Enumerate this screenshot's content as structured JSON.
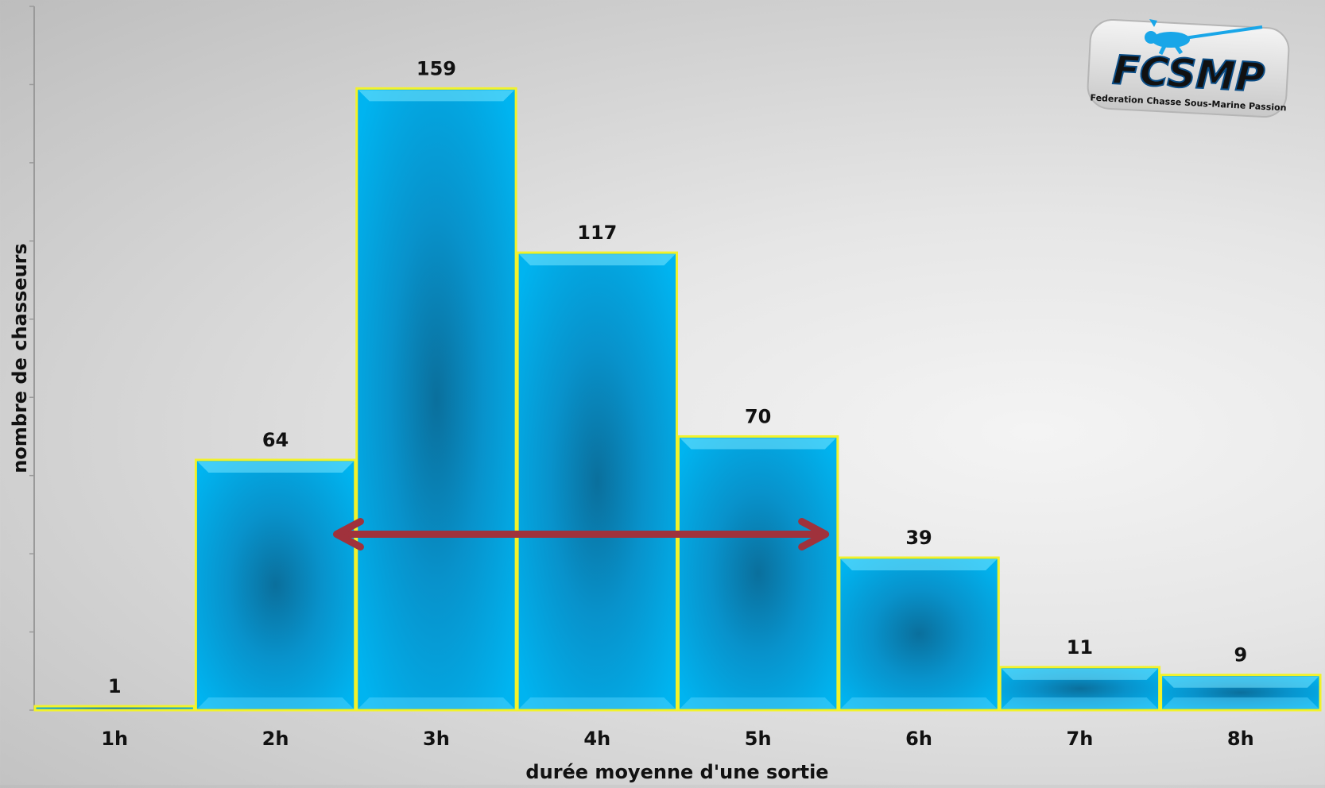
{
  "chart_data": {
    "type": "bar",
    "categories": [
      "1h",
      "2h",
      "3h",
      "4h",
      "5h",
      "6h",
      "7h",
      "8h"
    ],
    "values": [
      1,
      64,
      159,
      117,
      70,
      39,
      11,
      9
    ],
    "data_labels": [
      "1",
      "64",
      "159",
      "117",
      "70",
      "39",
      "11",
      "9"
    ],
    "title": "",
    "xlabel": "durée moyenne d'une sortie",
    "ylabel": "nombre de chasseurs",
    "ylim": [
      0,
      180
    ],
    "y_tick_labels_shown": false,
    "grid": false,
    "legend": "none",
    "annotation": {
      "type": "double-arrow",
      "from_category": "2h",
      "to_category": "5h",
      "at_value": 45,
      "color": "#a0323c"
    },
    "colors": {
      "bar_fill": "#00a9e8",
      "bar_center": "#0a6f9c",
      "bar_border": "#f2f22a"
    }
  },
  "logo": {
    "text": "FCSMP",
    "tagline": "Federation Chasse Sous-Marine Passion",
    "icon": "diver-with-speargun-icon"
  }
}
